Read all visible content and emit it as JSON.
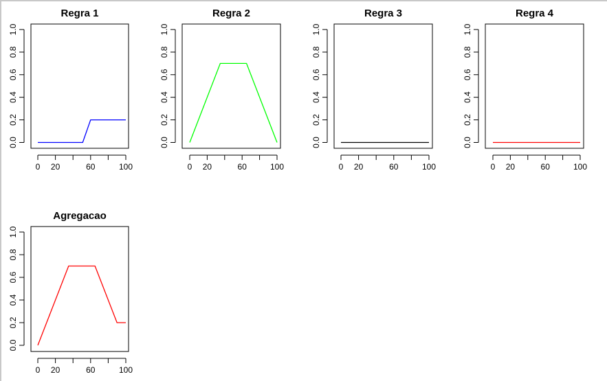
{
  "chart_data": [
    {
      "type": "line",
      "title": "Regra 1",
      "xlim": [
        0,
        100
      ],
      "ylim": [
        0,
        1
      ],
      "x_ticks": [
        0,
        20,
        40,
        60,
        80,
        100
      ],
      "x_tick_labels": [
        "0",
        "20",
        "",
        "60",
        "",
        "100"
      ],
      "y_ticks": [
        0,
        0.2,
        0.4,
        0.6,
        0.8,
        1.0
      ],
      "y_tick_labels": [
        "0.0",
        "0.2",
        "0.4",
        "0.6",
        "0.8",
        "1.0"
      ],
      "series": [
        {
          "color": "#0000ff",
          "x": [
            0,
            51,
            60,
            100
          ],
          "y": [
            0,
            0,
            0.2,
            0.2
          ]
        }
      ],
      "grid": false
    },
    {
      "type": "line",
      "title": "Regra 2",
      "xlim": [
        0,
        100
      ],
      "ylim": [
        0,
        1
      ],
      "x_ticks": [
        0,
        20,
        40,
        60,
        80,
        100
      ],
      "x_tick_labels": [
        "0",
        "20",
        "",
        "60",
        "",
        "100"
      ],
      "y_ticks": [
        0,
        0.2,
        0.4,
        0.6,
        0.8,
        1.0
      ],
      "y_tick_labels": [
        "0.0",
        "0.2",
        "0.4",
        "0.6",
        "0.8",
        "1.0"
      ],
      "series": [
        {
          "color": "#00ff00",
          "x": [
            0,
            35,
            65,
            100
          ],
          "y": [
            0,
            0.7,
            0.7,
            0
          ]
        }
      ],
      "grid": false
    },
    {
      "type": "line",
      "title": "Regra 3",
      "xlim": [
        0,
        100
      ],
      "ylim": [
        0,
        1
      ],
      "x_ticks": [
        0,
        20,
        40,
        60,
        80,
        100
      ],
      "x_tick_labels": [
        "0",
        "20",
        "",
        "60",
        "",
        "100"
      ],
      "y_ticks": [
        0,
        0.2,
        0.4,
        0.6,
        0.8,
        1.0
      ],
      "y_tick_labels": [
        "0.0",
        "0.2",
        "0.4",
        "0.6",
        "0.8",
        "1.0"
      ],
      "series": [
        {
          "color": "#000000",
          "x": [
            0,
            100
          ],
          "y": [
            0,
            0
          ]
        }
      ],
      "grid": false
    },
    {
      "type": "line",
      "title": "Regra 4",
      "xlim": [
        0,
        100
      ],
      "ylim": [
        0,
        1
      ],
      "x_ticks": [
        0,
        20,
        40,
        60,
        80,
        100
      ],
      "x_tick_labels": [
        "0",
        "20",
        "",
        "60",
        "",
        "100"
      ],
      "y_ticks": [
        0,
        0.2,
        0.4,
        0.6,
        0.8,
        1.0
      ],
      "y_tick_labels": [
        "0.0",
        "0.2",
        "0.4",
        "0.6",
        "0.8",
        "1.0"
      ],
      "series": [
        {
          "color": "#ff0000",
          "x": [
            0,
            100
          ],
          "y": [
            0,
            0
          ]
        }
      ],
      "grid": false
    },
    {
      "type": "line",
      "title": "Agregacao",
      "xlim": [
        0,
        100
      ],
      "ylim": [
        0,
        1
      ],
      "x_ticks": [
        0,
        20,
        40,
        60,
        80,
        100
      ],
      "x_tick_labels": [
        "0",
        "20",
        "",
        "60",
        "",
        "100"
      ],
      "y_ticks": [
        0,
        0.2,
        0.4,
        0.6,
        0.8,
        1.0
      ],
      "y_tick_labels": [
        "0.0",
        "0.2",
        "0.4",
        "0.6",
        "0.8",
        "1.0"
      ],
      "series": [
        {
          "color": "#ff0000",
          "x": [
            0,
            35,
            65,
            90,
            100
          ],
          "y": [
            0,
            0.7,
            0.7,
            0.2,
            0.2
          ]
        }
      ],
      "grid": false
    }
  ]
}
